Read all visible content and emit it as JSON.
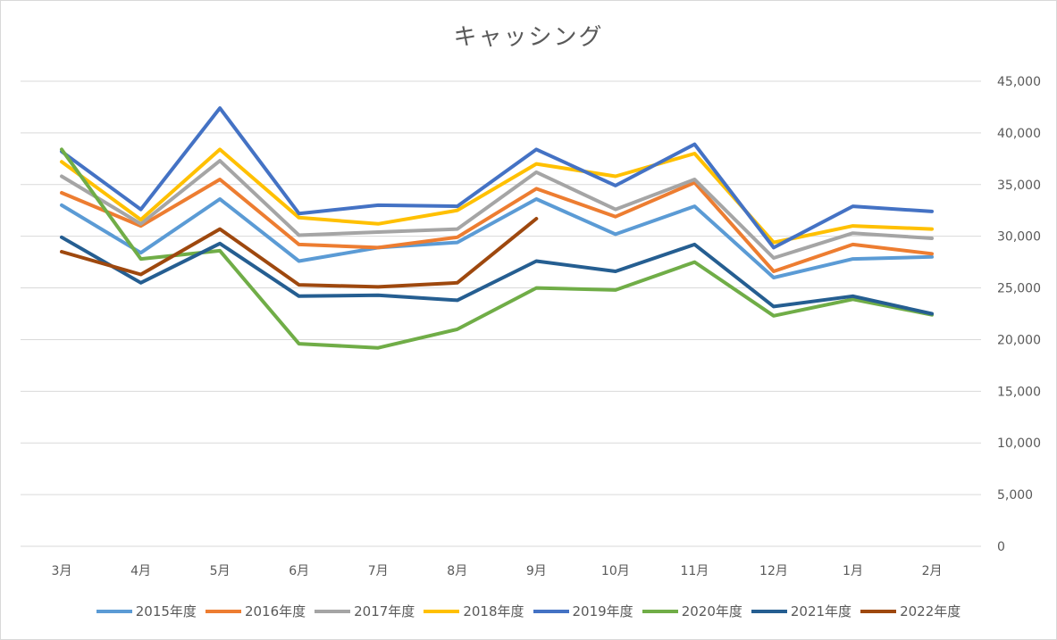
{
  "chart_data": {
    "type": "line",
    "title": "キャッシング",
    "categories": [
      "3月",
      "4月",
      "5月",
      "6月",
      "7月",
      "8月",
      "9月",
      "10月",
      "11月",
      "12月",
      "1月",
      "2月"
    ],
    "ylim": [
      0,
      45000
    ],
    "yticks": [
      0,
      5000,
      10000,
      15000,
      20000,
      25000,
      30000,
      35000,
      40000,
      45000
    ],
    "ytick_labels": [
      "0",
      "5,000",
      "10,000",
      "15,000",
      "20,000",
      "25,000",
      "30,000",
      "35,000",
      "40,000",
      "45,000"
    ],
    "y_axis_side": "right",
    "grid": true,
    "legend_position": "bottom",
    "series": [
      {
        "name": "2015年度",
        "color": "#5b9bd5",
        "values": [
          33000,
          28400,
          33600,
          27600,
          28900,
          29400,
          33600,
          30200,
          32900,
          26000,
          27800,
          28000
        ]
      },
      {
        "name": "2016年度",
        "color": "#ed7d31",
        "values": [
          34200,
          31000,
          35500,
          29200,
          28900,
          29900,
          34600,
          31900,
          35200,
          26600,
          29200,
          28300
        ]
      },
      {
        "name": "2017年度",
        "color": "#a5a5a5",
        "values": [
          35800,
          31200,
          37300,
          30100,
          30400,
          30700,
          36200,
          32600,
          35500,
          27900,
          30300,
          29800
        ]
      },
      {
        "name": "2018年度",
        "color": "#ffc000",
        "values": [
          37200,
          31600,
          38400,
          31800,
          31200,
          32500,
          37000,
          35800,
          38000,
          29400,
          31000,
          30700
        ]
      },
      {
        "name": "2019年度",
        "color": "#4472c4",
        "values": [
          38200,
          32600,
          42400,
          32200,
          33000,
          32900,
          38400,
          34900,
          38900,
          28900,
          32900,
          32400
        ]
      },
      {
        "name": "2020年度",
        "color": "#70ad47",
        "values": [
          38400,
          27800,
          28600,
          19600,
          19200,
          21000,
          25000,
          24800,
          27500,
          22300,
          23900,
          22400
        ]
      },
      {
        "name": "2021年度",
        "color": "#255e91",
        "values": [
          29900,
          25500,
          29300,
          24200,
          24300,
          23800,
          27600,
          26600,
          29200,
          23200,
          24200,
          22500
        ]
      },
      {
        "name": "2022年度",
        "color": "#9e480e",
        "values": [
          28500,
          26300,
          30700,
          25300,
          25100,
          25500,
          31700,
          null,
          null,
          null,
          null,
          null
        ]
      }
    ]
  }
}
